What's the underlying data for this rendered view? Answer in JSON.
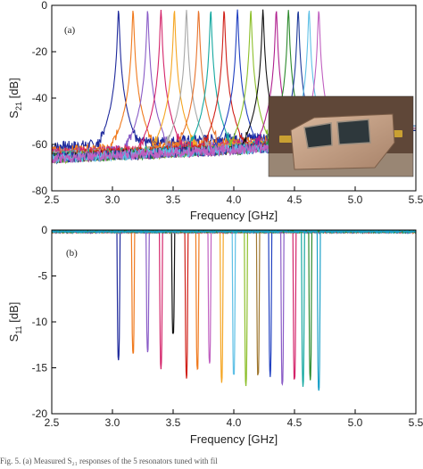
{
  "caption": "Fig. 5. (a) Measured S₂₁ responses of the 5 resonators tuned with fil",
  "chart_data": [
    {
      "type": "line",
      "panel_label": "(a)",
      "xlabel": "Frequency [GHz]",
      "ylabel": "S",
      "ylabel_sub": "21",
      "ylabel_unit": " [dB]",
      "xlim": [
        2.5,
        5.5
      ],
      "ylim": [
        -80,
        0
      ],
      "x_ticks": [
        "2.5",
        "3.0",
        "3.5",
        "4.0",
        "4.5",
        "5.0",
        "5.5"
      ],
      "y_ticks": [
        "0",
        "-20",
        "-40",
        "-60",
        "-80"
      ],
      "grid": false,
      "inset": "photograph of tunable resonator prototype",
      "series": [
        {
          "center": 3.05,
          "peak": -2,
          "bw": 0.055,
          "floor": -57,
          "color": "#1f2a9c"
        },
        {
          "center": 3.17,
          "peak": -2,
          "bw": 0.055,
          "floor": -59,
          "color": "#f07a1e"
        },
        {
          "center": 3.29,
          "peak": -2,
          "bw": 0.055,
          "floor": -60,
          "color": "#8a5cc7"
        },
        {
          "center": 3.4,
          "peak": -2,
          "bw": 0.055,
          "floor": -60,
          "color": "#d4246a"
        },
        {
          "center": 3.51,
          "peak": -2,
          "bw": 0.055,
          "floor": -61,
          "color": "#f5a623"
        },
        {
          "center": 3.61,
          "peak": -2,
          "bw": 0.055,
          "floor": -61,
          "color": "#a8a8a8"
        },
        {
          "center": 3.71,
          "peak": -2,
          "bw": 0.055,
          "floor": -61,
          "color": "#e8732c"
        },
        {
          "center": 3.81,
          "peak": -2,
          "bw": 0.055,
          "floor": -61,
          "color": "#14a8a0"
        },
        {
          "center": 3.92,
          "peak": -2,
          "bw": 0.055,
          "floor": -61,
          "color": "#d02018"
        },
        {
          "center": 4.03,
          "peak": -2,
          "bw": 0.055,
          "floor": -62,
          "color": "#1f3fc0"
        },
        {
          "center": 4.14,
          "peak": -2,
          "bw": 0.055,
          "floor": -62,
          "color": "#8cbf2a"
        },
        {
          "center": 4.24,
          "peak": -2,
          "bw": 0.055,
          "floor": -62,
          "color": "#111111"
        },
        {
          "center": 4.35,
          "peak": -2,
          "bw": 0.055,
          "floor": -62,
          "color": "#b0208f"
        },
        {
          "center": 4.45,
          "peak": -2,
          "bw": 0.055,
          "floor": -62,
          "color": "#2c8a2c"
        },
        {
          "center": 4.53,
          "peak": -2,
          "bw": 0.055,
          "floor": -62,
          "color": "#1e3a9a"
        },
        {
          "center": 4.62,
          "peak": -2,
          "bw": 0.055,
          "floor": -62,
          "color": "#5fc0e6"
        },
        {
          "center": 4.7,
          "peak": -2,
          "bw": 0.055,
          "floor": -62,
          "color": "#c060c0"
        }
      ]
    },
    {
      "type": "line",
      "panel_label": "(b)",
      "xlabel": "Frequency [GHz]",
      "ylabel": "S",
      "ylabel_sub": "11",
      "ylabel_unit": " [dB]",
      "xlim": [
        2.5,
        5.5
      ],
      "ylim": [
        -20,
        0
      ],
      "x_ticks": [
        "2.5",
        "3.0",
        "3.5",
        "4.0",
        "4.5",
        "5.0",
        "5.5"
      ],
      "y_ticks": [
        "0",
        "-5",
        "-10",
        "-15",
        "-20"
      ],
      "grid": false,
      "series": [
        {
          "center": 3.05,
          "depth": -14.0,
          "color": "#1f2a9c"
        },
        {
          "center": 3.17,
          "depth": -13.7,
          "color": "#f07a1e"
        },
        {
          "center": 3.29,
          "depth": -13.3,
          "color": "#8a5cc7"
        },
        {
          "center": 3.4,
          "depth": -14.8,
          "color": "#d4246a"
        },
        {
          "center": 3.5,
          "depth": -11.5,
          "color": "#111111"
        },
        {
          "center": 3.61,
          "depth": -16.0,
          "color": "#d02018"
        },
        {
          "center": 3.7,
          "depth": -15.2,
          "color": "#f07a1e"
        },
        {
          "center": 3.8,
          "depth": -14.5,
          "color": "#c060c0"
        },
        {
          "center": 3.9,
          "depth": -16.3,
          "color": "#f5a623"
        },
        {
          "center": 4.0,
          "depth": -16.0,
          "color": "#5fc0e6"
        },
        {
          "center": 4.1,
          "depth": -16.6,
          "color": "#8cbf2a"
        },
        {
          "center": 4.2,
          "depth": -16.0,
          "color": "#a07830"
        },
        {
          "center": 4.3,
          "depth": -15.8,
          "color": "#1f3fc0"
        },
        {
          "center": 4.4,
          "depth": -17.0,
          "color": "#8a5cc7"
        },
        {
          "center": 4.5,
          "depth": -16.4,
          "color": "#d4246a"
        },
        {
          "center": 4.57,
          "depth": -16.9,
          "color": "#14a8a0"
        },
        {
          "center": 4.63,
          "depth": -16.2,
          "color": "#2c8a2c"
        },
        {
          "center": 4.7,
          "depth": -17.6,
          "color": "#1aa0c8"
        }
      ]
    }
  ]
}
